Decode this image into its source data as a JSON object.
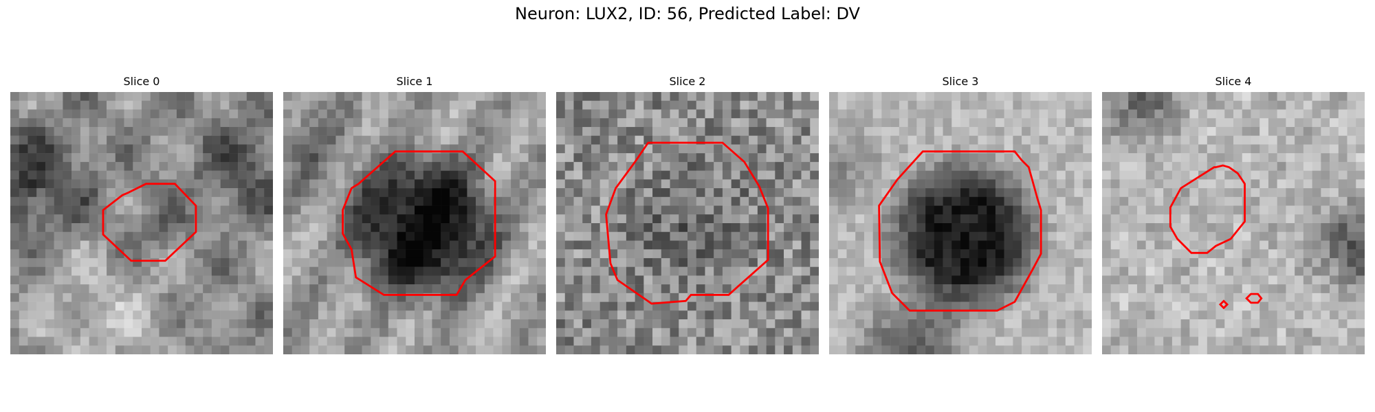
{
  "figure": {
    "title": "Neuron: LUX2, ID: 56, Predicted Label: DV"
  },
  "panels": [
    {
      "title": "Slice 0"
    },
    {
      "title": "Slice 1"
    },
    {
      "title": "Slice 2"
    },
    {
      "title": "Slice 3"
    },
    {
      "title": "Slice 4"
    }
  ],
  "colors": {
    "contour": "#ff0000",
    "colormap": "gray"
  }
}
